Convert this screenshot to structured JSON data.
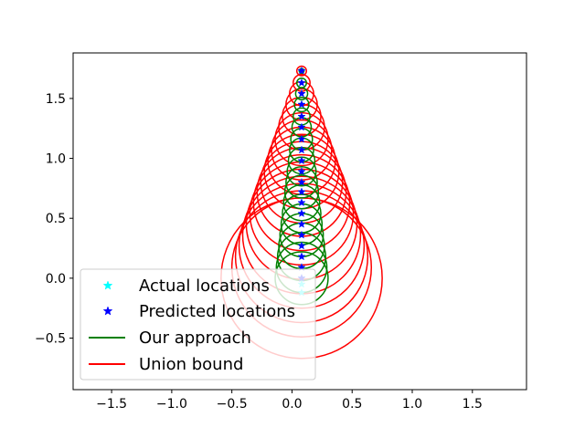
{
  "chart_data": {
    "type": "scatter",
    "title": "",
    "xlabel": "",
    "ylabel": "",
    "xlim": [
      -1.82,
      1.95
    ],
    "ylim": [
      -0.93,
      1.88
    ],
    "xticks": [
      -1.5,
      -1.0,
      -0.5,
      0.0,
      0.5,
      1.0,
      1.5
    ],
    "xtick_labels": [
      "−1.5",
      "−1.0",
      "−0.5",
      "0.0",
      "0.5",
      "1.0",
      "1.5"
    ],
    "yticks": [
      -0.5,
      0.0,
      0.5,
      1.0,
      1.5
    ],
    "ytick_labels": [
      "−0.5",
      "0.0",
      "0.5",
      "1.0",
      "1.5"
    ],
    "grid": false,
    "legend_position": "lower-left",
    "series": [
      {
        "name": "Actual locations",
        "kind": "marker",
        "marker": "star",
        "color": "#00ffff",
        "x": [
          0.08,
          0.08,
          0.08,
          0.08,
          0.08,
          0.08,
          0.08,
          0.08,
          0.08,
          0.08,
          0.08,
          0.08,
          0.08,
          0.08,
          0.08,
          0.08,
          0.08,
          0.08,
          0.08,
          0.08,
          0.08,
          0.08
        ],
        "y": [
          1.73,
          1.63,
          1.54,
          1.45,
          1.35,
          1.26,
          1.16,
          1.07,
          0.98,
          0.89,
          0.8,
          0.72,
          0.63,
          0.54,
          0.45,
          0.36,
          0.27,
          0.18,
          0.09,
          0.0,
          -0.05,
          -0.12
        ]
      },
      {
        "name": "Predicted locations",
        "kind": "marker",
        "marker": "star",
        "color": "#0000ff",
        "x": [
          0.08,
          0.08,
          0.08,
          0.08,
          0.08,
          0.08,
          0.08,
          0.08,
          0.08,
          0.08,
          0.08,
          0.08,
          0.08,
          0.08,
          0.08,
          0.08,
          0.08,
          0.08,
          0.08,
          0.08
        ],
        "y": [
          1.73,
          1.63,
          1.54,
          1.45,
          1.35,
          1.26,
          1.16,
          1.07,
          0.98,
          0.89,
          0.8,
          0.72,
          0.63,
          0.54,
          0.45,
          0.36,
          0.27,
          0.18,
          0.09,
          0.0
        ]
      },
      {
        "name": "Our approach",
        "kind": "circles",
        "color": "#008000",
        "centers_x": [
          0.08,
          0.08,
          0.08,
          0.08,
          0.08,
          0.08,
          0.08,
          0.08,
          0.08,
          0.08,
          0.08,
          0.08,
          0.08,
          0.08,
          0.08,
          0.08,
          0.08,
          0.08,
          0.08,
          0.08
        ],
        "centers_y": [
          1.73,
          1.63,
          1.54,
          1.45,
          1.35,
          1.26,
          1.16,
          1.07,
          0.98,
          0.89,
          0.8,
          0.72,
          0.63,
          0.54,
          0.45,
          0.36,
          0.27,
          0.18,
          0.09,
          0.0
        ],
        "radius": [
          0.02,
          0.04,
          0.05,
          0.06,
          0.07,
          0.08,
          0.09,
          0.1,
          0.11,
          0.12,
          0.13,
          0.14,
          0.15,
          0.16,
          0.17,
          0.18,
          0.19,
          0.2,
          0.21,
          0.22
        ]
      },
      {
        "name": "Union bound",
        "kind": "circles",
        "color": "#ff0000",
        "centers_x": [
          0.08,
          0.08,
          0.08,
          0.08,
          0.08,
          0.08,
          0.08,
          0.08,
          0.08,
          0.08,
          0.08,
          0.08,
          0.08,
          0.08,
          0.08,
          0.08,
          0.08,
          0.08,
          0.08,
          0.08
        ],
        "centers_y": [
          1.73,
          1.63,
          1.54,
          1.45,
          1.35,
          1.26,
          1.16,
          1.07,
          0.98,
          0.89,
          0.8,
          0.72,
          0.63,
          0.54,
          0.45,
          0.36,
          0.27,
          0.18,
          0.09,
          0.0
        ],
        "radius": [
          0.04,
          0.07,
          0.1,
          0.13,
          0.16,
          0.19,
          0.22,
          0.25,
          0.28,
          0.31,
          0.34,
          0.37,
          0.4,
          0.43,
          0.46,
          0.49,
          0.52,
          0.55,
          0.58,
          0.67
        ]
      }
    ]
  }
}
